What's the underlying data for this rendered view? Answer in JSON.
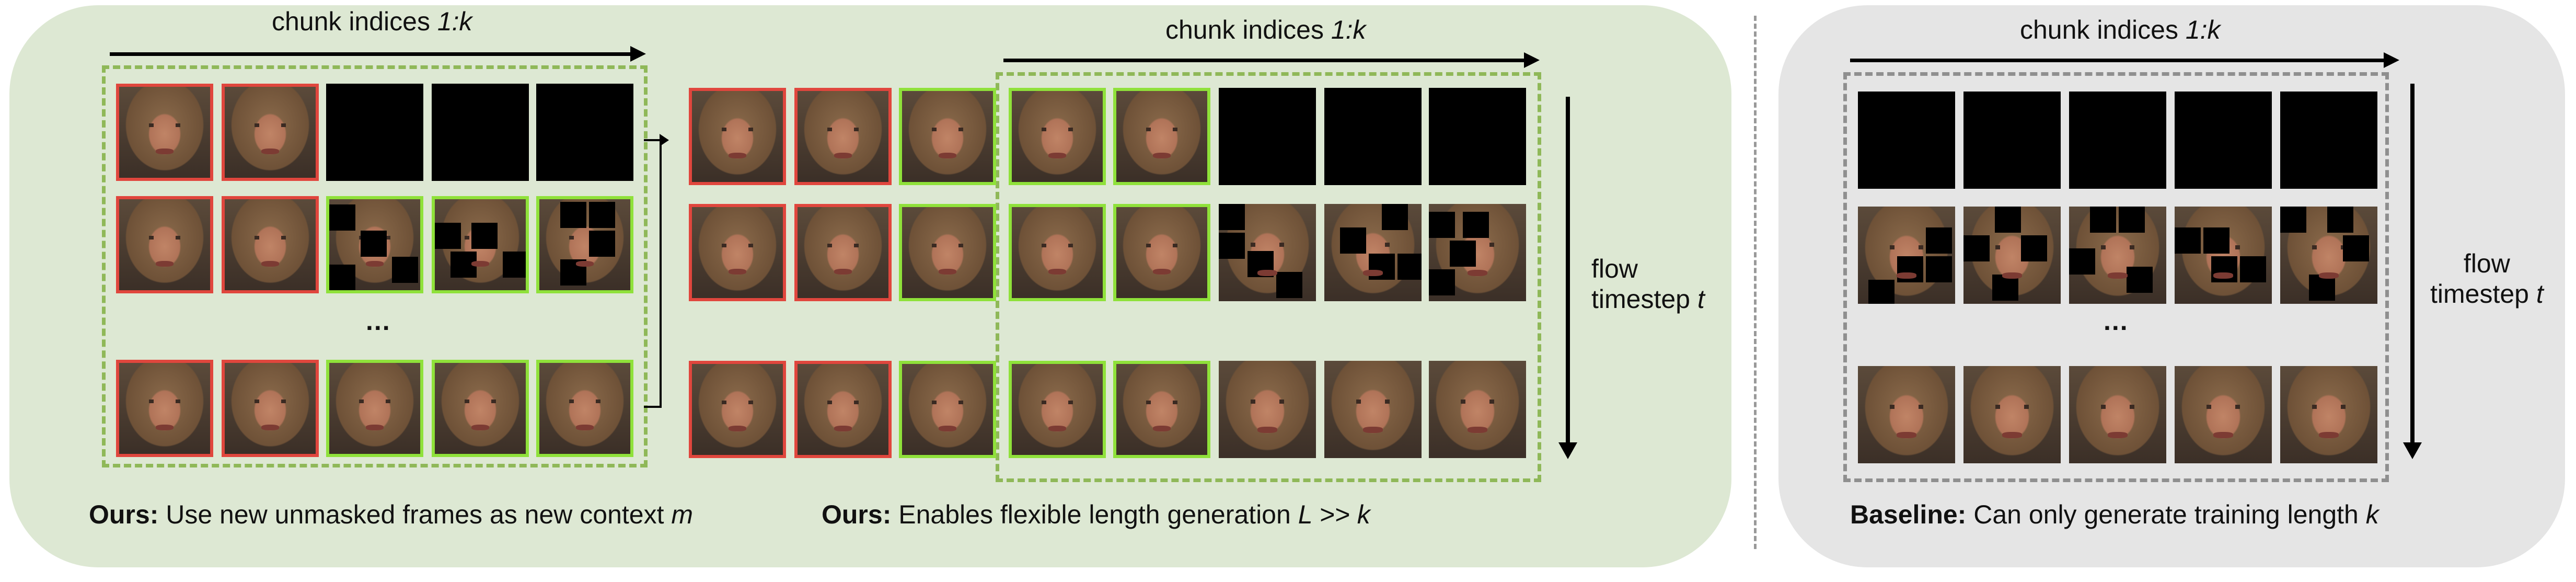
{
  "top_label_prefix": "chunk indices ",
  "top_label_var": "1:k",
  "flow_label_line1": "flow",
  "flow_label_line2_prefix": "timestep ",
  "flow_label_var": "t",
  "ellipsis": "...",
  "captions": {
    "left_bold": "Ours:",
    "left_rest": " Use new unmasked frames as new context ",
    "left_var": "m",
    "middle_bold": "Ours:",
    "middle_rest": " Enables flexible length generation ",
    "middle_var": "L >> k",
    "right_bold": "Baseline:",
    "right_rest": " Can only generate training length ",
    "right_var": "k"
  },
  "colors": {
    "ours_panel": "#dde8d3",
    "baseline_panel": "#e5e5e5",
    "context_frame_border": "#e0463d",
    "generated_frame_border": "#8fe13a",
    "ours_dashed_box": "#8fb858",
    "baseline_dashed_box": "#8f8f8f"
  },
  "icons": {
    "frame": "face-frame-icon",
    "masked": "masked-frame-icon",
    "noise_patch": "noise-patch-icon"
  }
}
